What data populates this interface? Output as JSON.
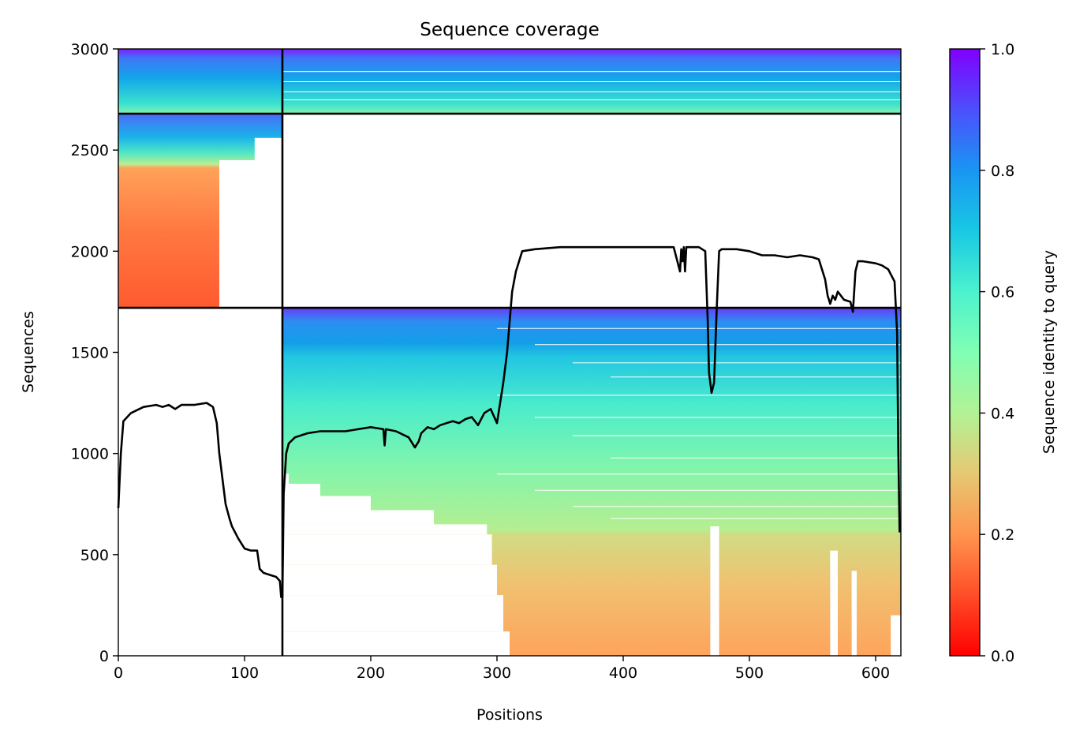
{
  "chart_data": {
    "type": "heatmap",
    "title": "Sequence coverage",
    "xlabel": "Positions",
    "ylabel": "Sequences",
    "xlim": [
      0,
      620
    ],
    "ylim": [
      0,
      3000
    ],
    "xticks": [
      0,
      100,
      200,
      300,
      400,
      500,
      600
    ],
    "yticks": [
      0,
      500,
      1000,
      1500,
      2000,
      2500,
      3000
    ],
    "colorbar": {
      "label": "Sequence identity to query",
      "colormap": "rainbow_r",
      "range": [
        0.0,
        1.0
      ],
      "ticks": [
        "0.0",
        "0.2",
        "0.4",
        "0.6",
        "0.8",
        "1.0"
      ]
    },
    "segment_boundary_x": 130,
    "group_boundaries_y": [
      1720,
      2680
    ],
    "blocks": [
      {
        "group": "top",
        "x_range": [
          0,
          130
        ],
        "y_range": [
          2680,
          3000
        ],
        "identity_bottom": 0.62,
        "identity_top": 1.0
      },
      {
        "group": "top",
        "x_range": [
          130,
          620
        ],
        "y_range": [
          2680,
          3000
        ],
        "identity_bottom": 0.62,
        "identity_top": 1.0
      },
      {
        "group": "middle",
        "x_range": [
          0,
          130
        ],
        "y_range": [
          1720,
          2680
        ],
        "identity_bottom": 0.15,
        "identity_top": 0.9
      },
      {
        "group": "bottom",
        "x_range": [
          130,
          620
        ],
        "y_range": [
          0,
          1720
        ],
        "identity_bottom": 0.25,
        "identity_top": 0.95
      }
    ],
    "coverage_line": {
      "x": [
        0,
        2,
        4,
        10,
        20,
        30,
        35,
        40,
        45,
        50,
        60,
        70,
        75,
        78,
        80,
        82,
        85,
        88,
        90,
        95,
        100,
        105,
        110,
        112,
        115,
        120,
        125,
        128,
        129,
        130,
        131,
        133,
        135,
        140,
        150,
        160,
        170,
        180,
        190,
        200,
        210,
        211,
        212,
        220,
        230,
        235,
        238,
        240,
        245,
        250,
        255,
        260,
        265,
        270,
        275,
        280,
        285,
        290,
        295,
        300,
        302,
        305,
        308,
        310,
        312,
        315,
        320,
        330,
        350,
        370,
        380,
        400,
        420,
        440,
        445,
        446,
        447,
        448,
        449,
        450,
        452,
        455,
        460,
        465,
        467,
        468,
        470,
        472,
        474,
        476,
        478,
        480,
        490,
        500,
        510,
        520,
        530,
        540,
        550,
        555,
        560,
        562,
        564,
        566,
        568,
        570,
        575,
        580,
        582,
        584,
        586,
        590,
        600,
        605,
        610,
        615,
        617,
        618,
        619
      ],
      "y": [
        730,
        1000,
        1160,
        1200,
        1230,
        1240,
        1230,
        1240,
        1220,
        1240,
        1240,
        1250,
        1230,
        1150,
        1000,
        900,
        750,
        680,
        640,
        580,
        530,
        520,
        520,
        430,
        410,
        400,
        390,
        370,
        290,
        290,
        800,
        1000,
        1050,
        1080,
        1100,
        1110,
        1110,
        1110,
        1120,
        1130,
        1120,
        1040,
        1120,
        1110,
        1080,
        1030,
        1060,
        1100,
        1130,
        1120,
        1140,
        1150,
        1160,
        1150,
        1170,
        1180,
        1140,
        1200,
        1220,
        1150,
        1230,
        1350,
        1500,
        1650,
        1800,
        1900,
        2000,
        2010,
        2020,
        2020,
        2020,
        2020,
        2020,
        2020,
        1900,
        2010,
        1950,
        2020,
        1900,
        2020,
        2020,
        2020,
        2020,
        2000,
        1650,
        1400,
        1300,
        1350,
        1700,
        2000,
        2010,
        2010,
        2010,
        2000,
        1980,
        1980,
        1970,
        1980,
        1970,
        1960,
        1860,
        1780,
        1740,
        1780,
        1760,
        1800,
        1760,
        1750,
        1700,
        1900,
        1950,
        1950,
        1940,
        1930,
        1910,
        1850,
        1600,
        1000,
        610
      ]
    }
  }
}
